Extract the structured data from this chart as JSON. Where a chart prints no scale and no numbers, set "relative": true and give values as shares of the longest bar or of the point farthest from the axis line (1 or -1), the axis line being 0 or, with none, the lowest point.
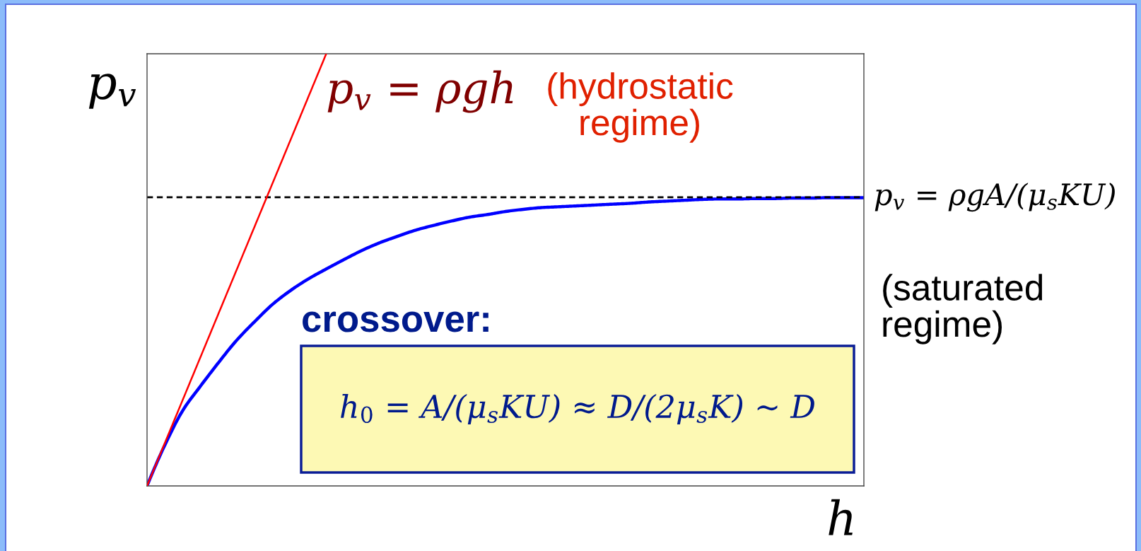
{
  "chart_data": {
    "type": "line",
    "relative": true,
    "categories": [
      null,
      null,
      null,
      null,
      null,
      null,
      null,
      null,
      null,
      null,
      null,
      null,
      null,
      null,
      null,
      null,
      null,
      null,
      null,
      null,
      null,
      null,
      null,
      null,
      null,
      null,
      null,
      null,
      null,
      null,
      null,
      null,
      null,
      null,
      null,
      null,
      null,
      null,
      null,
      null,
      null
    ],
    "series": [
      {
        "color": "#0000ff",
        "values": [
          0,
          0.095,
          0.175,
          0.232,
          0.286,
          0.337,
          0.38,
          0.42,
          0.452,
          0.479,
          0.502,
          0.524,
          0.545,
          0.563,
          0.578,
          0.592,
          0.603,
          0.613,
          0.622,
          0.628,
          0.635,
          0.64,
          0.644,
          0.646,
          0.648,
          0.65,
          0.652,
          0.654,
          0.657,
          0.659,
          0.661,
          0.663,
          0.664,
          0.664,
          0.665,
          0.665,
          0.666,
          0.666,
          0.667,
          0.667,
          0.667
        ]
      },
      {
        "color": "#ff0000",
        "values": [
          0,
          0.1,
          0.2,
          0.3,
          0.4,
          0.5,
          0.6,
          0.7,
          0.8,
          0.9,
          1.0,
          null,
          null,
          null,
          null,
          null,
          null,
          null,
          null,
          null,
          null,
          null,
          null,
          null,
          null,
          null,
          null,
          null,
          null,
          null,
          null,
          null,
          null,
          null,
          null,
          null,
          null,
          null,
          null,
          null,
          null
        ]
      }
    ],
    "ylabel": "p$_{v}$",
    "xlabel": "h",
    "ref_lines": [
      {
        "axis": "y",
        "value": 0.668,
        "label": "p$_{v}$ = ρgA/(μ$_{s}$KU)",
        "color": "#000000",
        "line_style": "dashed"
      }
    ],
    "annotations": [
      "p$_{v}$ = ρgh",
      "(hydrostatic\nregime)",
      "(saturated\nregime)",
      "crossover:",
      "h$_{0}$ = A/(μ$_{s}$KU) ≈ D/(2μ$_{s}$K) ∼ D"
    ],
    "tick_labels": false
  }
}
